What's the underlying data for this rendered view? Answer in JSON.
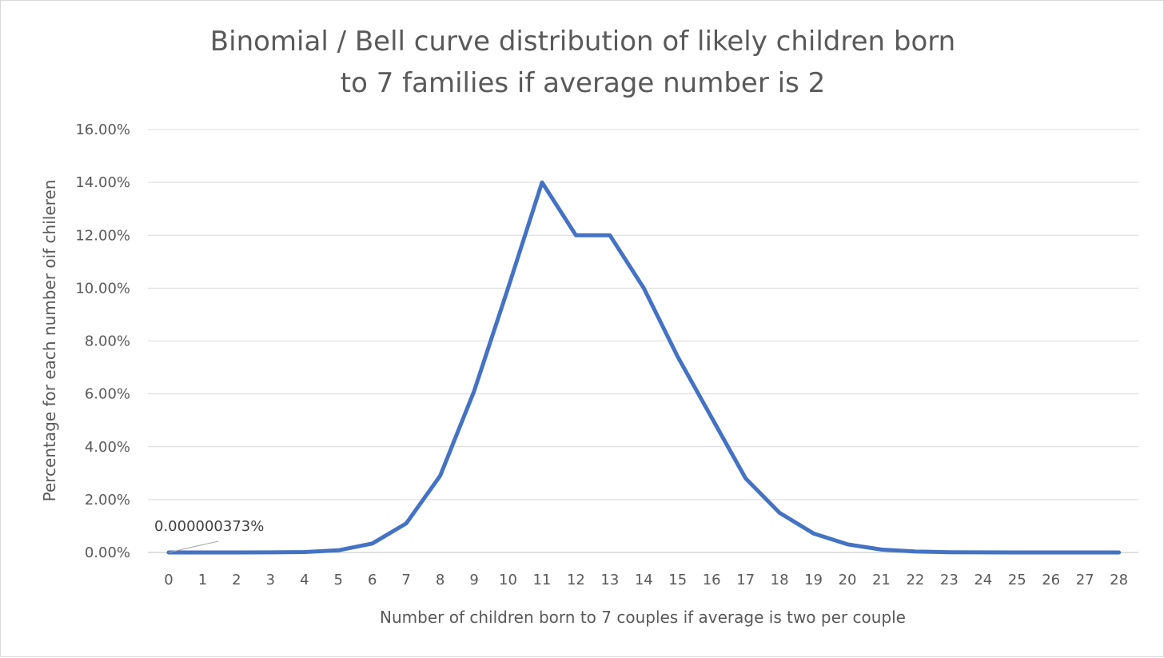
{
  "chart_data": {
    "type": "line",
    "title_lines": [
      "Binomial / Bell curve distribution of likely children born",
      "to 7 families if average number is 2"
    ],
    "xlabel": "Number  of children born to 7 couples if average is two per couple",
    "ylabel": "Percentage for each number  oif chileren",
    "categories": [
      "0",
      "1",
      "2",
      "3",
      "4",
      "5",
      "6",
      "7",
      "8",
      "9",
      "10",
      "11",
      "12",
      "13",
      "14",
      "15",
      "16",
      "17",
      "18",
      "19",
      "20",
      "21",
      "22",
      "23",
      "24",
      "25",
      "26",
      "27",
      "28"
    ],
    "y_tick_labels": [
      "0.00%",
      "2.00%",
      "4.00%",
      "6.00%",
      "8.00%",
      "10.00%",
      "12.00%",
      "14.00%",
      "16.00%"
    ],
    "ylim": [
      0,
      0.16
    ],
    "y_tick_step": 0.02,
    "grid": true,
    "series": [
      {
        "values": [
          3.7e-09,
          1e-07,
          1.8e-06,
          2e-05,
          0.00015,
          0.00082,
          0.0034,
          0.011,
          0.029,
          0.061,
          0.1,
          0.14,
          0.12,
          0.12,
          0.1,
          0.074,
          0.051,
          0.028,
          0.015,
          0.0072,
          0.0031,
          0.0011,
          0.00036,
          9.5e-05,
          2e-05,
          3.2e-06,
          3.8e-07,
          2.8e-08,
          9e-10
        ],
        "color": "#4472c4"
      }
    ],
    "annotation": {
      "text": "0.000000373%",
      "category_index": 0
    }
  }
}
